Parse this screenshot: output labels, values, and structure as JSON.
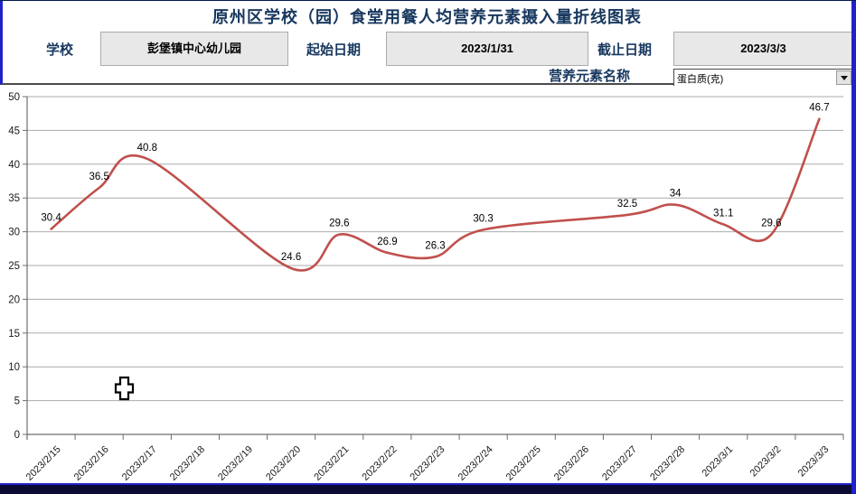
{
  "colors": {
    "accent_navy": "#17375E",
    "line_red": "#C0504D",
    "border_blue": "#2121CC",
    "bottom_bar_navy": "#0A0A33",
    "field_bg": "#E8E8E8",
    "grid_gray": "#ABABAB"
  },
  "icons": {
    "dropdown": "chevron-down-icon",
    "cursor": "cell-cursor-icon"
  },
  "header": {
    "title": "原州区学校（园）食堂用餐人均营养元素摄入量折线图表",
    "school_label": "学校",
    "school_value": "彭堡镇中心幼儿园",
    "start_date_label": "起始日期",
    "start_date_value": "2023/1/31",
    "end_date_label": "截止日期",
    "end_date_value": "2023/3/3",
    "element_label": "营养元素名称",
    "element_value": "蛋白质(克)"
  },
  "chart_data": {
    "type": "line",
    "smooth": true,
    "data_labels": true,
    "grid": true,
    "legend": "none",
    "line_color": "#C0504D",
    "categories": [
      "2023/2/15",
      "2023/2/16",
      "2023/2/17",
      "2023/2/18",
      "2023/2/19",
      "2023/2/20",
      "2023/2/21",
      "2023/2/22",
      "2023/2/23",
      "2023/2/24",
      "2023/2/25",
      "2023/2/26",
      "2023/2/27",
      "2023/2/28",
      "2023/3/1",
      "2023/3/2",
      "2023/3/3"
    ],
    "series": [
      {
        "name": "蛋白质(克)",
        "values": [
          30.4,
          36.5,
          40.8,
          null,
          null,
          24.6,
          29.6,
          26.9,
          26.3,
          30.3,
          null,
          null,
          32.5,
          34,
          31.1,
          29.6,
          46.7
        ]
      }
    ],
    "ylim": [
      0,
      50
    ],
    "ytick_step": 5,
    "xlabel": "",
    "ylabel": ""
  }
}
